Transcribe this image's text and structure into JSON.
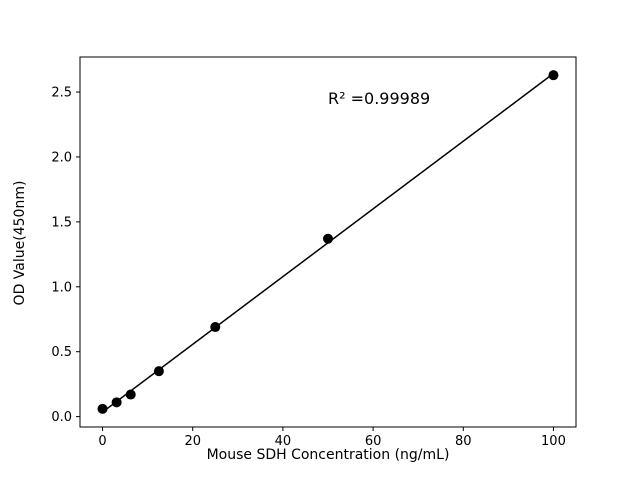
{
  "chart_data": {
    "type": "scatter",
    "title": "",
    "xlabel": "Mouse SDH Concentration (ng/mL)",
    "ylabel": "OD Value(450nm)",
    "annotation": "R² =0.99989",
    "x": [
      0,
      3.125,
      6.25,
      12.5,
      25,
      50,
      100
    ],
    "y": [
      0.06,
      0.11,
      0.17,
      0.35,
      0.69,
      1.37,
      2.63
    ],
    "fit_line": true,
    "xticks": [
      0,
      20,
      40,
      60,
      80,
      100
    ],
    "yticks": [
      0.0,
      0.5,
      1.0,
      1.5,
      2.0,
      2.5
    ],
    "xlim": [
      -5,
      105
    ],
    "ylim": [
      -0.08,
      2.77
    ],
    "grid": false,
    "legend": "none",
    "marker": "filled-circle",
    "color": "#000000",
    "background": "#ffffff"
  }
}
